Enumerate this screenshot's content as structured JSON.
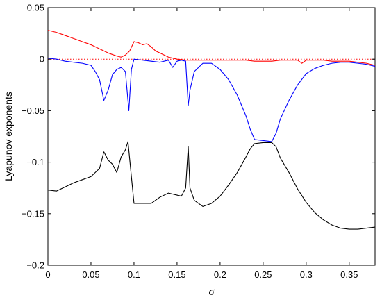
{
  "chart_data": {
    "type": "line",
    "xlabel": "σ",
    "ylabel": "Lyapunov exponents",
    "xlim": [
      0,
      0.38
    ],
    "ylim": [
      -0.2,
      0.05
    ],
    "xticks": [
      0,
      0.05,
      0.1,
      0.15,
      0.2,
      0.25,
      0.3,
      0.35
    ],
    "xtick_labels": [
      "0",
      "0.05",
      "0.1",
      "0.15",
      "0.2",
      "0.25",
      "0.3",
      "0.35"
    ],
    "yticks": [
      -0.2,
      -0.15,
      -0.1,
      -0.05,
      0,
      0.05
    ],
    "ytick_labels": [
      "−0.2",
      "−0.15",
      "−0.1",
      "−0.05",
      "0",
      "0.05"
    ],
    "grid": false,
    "zero_reference_line": {
      "y": 0,
      "style": "dotted",
      "color": "#ff0000"
    },
    "series": [
      {
        "color": "#ff0000",
        "x": [
          0,
          0.01,
          0.02,
          0.03,
          0.04,
          0.05,
          0.06,
          0.07,
          0.08,
          0.085,
          0.09,
          0.095,
          0.1,
          0.105,
          0.11,
          0.115,
          0.12,
          0.125,
          0.13,
          0.135,
          0.14,
          0.145,
          0.15,
          0.16,
          0.17,
          0.18,
          0.19,
          0.2,
          0.21,
          0.22,
          0.23,
          0.24,
          0.25,
          0.26,
          0.27,
          0.28,
          0.29,
          0.295,
          0.3,
          0.31,
          0.32,
          0.33,
          0.34,
          0.35,
          0.36,
          0.37,
          0.38
        ],
        "y": [
          0.028,
          0.026,
          0.023,
          0.02,
          0.017,
          0.014,
          0.01,
          0.006,
          0.003,
          0.002,
          0.004,
          0.008,
          0.017,
          0.016,
          0.014,
          0.015,
          0.012,
          0.008,
          0.006,
          0.004,
          0.002,
          0.001,
          0.0,
          -0.001,
          -0.001,
          -0.001,
          -0.001,
          -0.001,
          -0.001,
          -0.001,
          -0.001,
          -0.002,
          -0.002,
          -0.002,
          -0.001,
          -0.001,
          -0.001,
          -0.004,
          -0.001,
          -0.001,
          -0.001,
          -0.002,
          -0.002,
          -0.002,
          -0.003,
          -0.004,
          -0.006
        ]
      },
      {
        "color": "#0000ff",
        "x": [
          0,
          0.01,
          0.02,
          0.03,
          0.04,
          0.05,
          0.055,
          0.06,
          0.065,
          0.07,
          0.075,
          0.08,
          0.085,
          0.09,
          0.094,
          0.097,
          0.1,
          0.11,
          0.12,
          0.13,
          0.14,
          0.145,
          0.15,
          0.155,
          0.16,
          0.163,
          0.165,
          0.17,
          0.18,
          0.19,
          0.2,
          0.21,
          0.22,
          0.23,
          0.235,
          0.24,
          0.25,
          0.26,
          0.265,
          0.27,
          0.28,
          0.29,
          0.3,
          0.31,
          0.32,
          0.33,
          0.34,
          0.35,
          0.36,
          0.37,
          0.38
        ],
        "y": [
          0.001,
          0.0,
          -0.002,
          -0.003,
          -0.004,
          -0.006,
          -0.012,
          -0.02,
          -0.04,
          -0.03,
          -0.015,
          -0.01,
          -0.008,
          -0.012,
          -0.05,
          -0.01,
          0.0,
          -0.001,
          -0.002,
          -0.003,
          -0.001,
          -0.008,
          -0.002,
          -0.001,
          -0.002,
          -0.045,
          -0.03,
          -0.012,
          -0.004,
          -0.004,
          -0.01,
          -0.02,
          -0.035,
          -0.055,
          -0.068,
          -0.078,
          -0.079,
          -0.08,
          -0.072,
          -0.058,
          -0.04,
          -0.025,
          -0.014,
          -0.009,
          -0.006,
          -0.004,
          -0.003,
          -0.003,
          -0.004,
          -0.005,
          -0.007
        ]
      },
      {
        "color": "#000000",
        "x": [
          0,
          0.01,
          0.02,
          0.03,
          0.04,
          0.05,
          0.06,
          0.065,
          0.07,
          0.075,
          0.08,
          0.085,
          0.09,
          0.093,
          0.1,
          0.11,
          0.12,
          0.13,
          0.14,
          0.15,
          0.155,
          0.16,
          0.163,
          0.165,
          0.17,
          0.18,
          0.19,
          0.2,
          0.21,
          0.22,
          0.23,
          0.235,
          0.24,
          0.25,
          0.26,
          0.265,
          0.27,
          0.28,
          0.29,
          0.3,
          0.31,
          0.32,
          0.33,
          0.34,
          0.35,
          0.36,
          0.37,
          0.38
        ],
        "y": [
          -0.127,
          -0.128,
          -0.124,
          -0.12,
          -0.117,
          -0.114,
          -0.106,
          -0.09,
          -0.098,
          -0.102,
          -0.11,
          -0.095,
          -0.088,
          -0.08,
          -0.14,
          -0.14,
          -0.14,
          -0.134,
          -0.13,
          -0.132,
          -0.133,
          -0.125,
          -0.085,
          -0.125,
          -0.137,
          -0.143,
          -0.14,
          -0.133,
          -0.122,
          -0.11,
          -0.095,
          -0.087,
          -0.082,
          -0.081,
          -0.081,
          -0.085,
          -0.096,
          -0.11,
          -0.126,
          -0.139,
          -0.149,
          -0.156,
          -0.161,
          -0.164,
          -0.165,
          -0.165,
          -0.164,
          -0.163
        ]
      }
    ]
  }
}
